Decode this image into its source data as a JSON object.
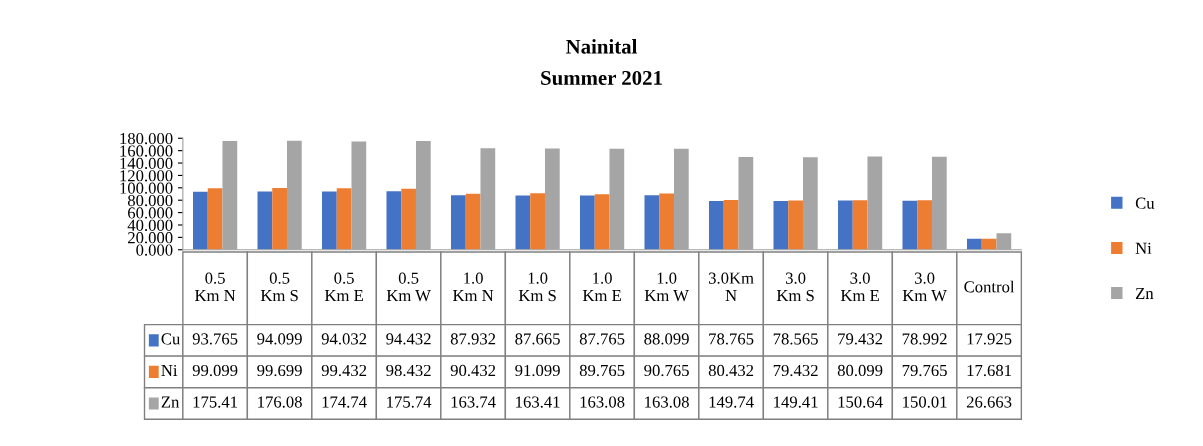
{
  "chart_data": {
    "type": "bar",
    "title": "Nainital",
    "subtitle": "Summer 2021",
    "categories": [
      "0.5 Km N",
      "0.5 Km S",
      "0.5 Km E",
      "0.5 Km W",
      "1.0 Km N",
      "1.0 Km S",
      "1.0 Km E",
      "1.0 Km W",
      "3.0Km N",
      "3.0 Km S",
      "3.0 Km E",
      "3.0 Km W",
      "Control"
    ],
    "series": [
      {
        "name": "Cu",
        "color": "#4472c4",
        "values": [
          93.765,
          94.099,
          94.032,
          94.432,
          87.932,
          87.665,
          87.765,
          88.099,
          78.765,
          78.565,
          79.432,
          78.992,
          17.925
        ],
        "value_labels": [
          "93.765",
          "94.099",
          "94.032",
          "94.432",
          "87.932",
          "87.665",
          "87.765",
          "88.099",
          "78.765",
          "78.565",
          "79.432",
          "78.992",
          "17.925"
        ]
      },
      {
        "name": "Ni",
        "color": "#ed7d31",
        "values": [
          99.099,
          99.699,
          99.432,
          98.432,
          90.432,
          91.099,
          89.765,
          90.765,
          80.432,
          79.432,
          80.099,
          79.765,
          17.681
        ],
        "value_labels": [
          "99.099",
          "99.699",
          "99.432",
          "98.432",
          "90.432",
          "91.099",
          "89.765",
          "90.765",
          "80.432",
          "79.432",
          "80.099",
          "79.765",
          "17.681"
        ]
      },
      {
        "name": "Zn",
        "color": "#a5a5a5",
        "values": [
          175.41,
          176.08,
          174.74,
          175.74,
          163.74,
          163.41,
          163.08,
          163.08,
          149.74,
          149.41,
          150.64,
          150.01,
          26.663
        ],
        "value_labels": [
          "175.41",
          "176.08",
          "174.74",
          "175.74",
          "163.74",
          "163.41",
          "163.08",
          "163.08",
          "149.74",
          "149.41",
          "150.64",
          "150.01",
          "26.663"
        ]
      }
    ],
    "ylim": [
      0,
      180
    ],
    "yticks": [
      {
        "value": 0,
        "label": "0.000"
      },
      {
        "value": 20,
        "label": "20.000"
      },
      {
        "value": 40,
        "label": "40.000"
      },
      {
        "value": 60,
        "label": "60.000"
      },
      {
        "value": 80,
        "label": "80.000"
      },
      {
        "value": 100,
        "label": "100.000"
      },
      {
        "value": 120,
        "label": "120.000"
      },
      {
        "value": 140,
        "label": "140.000"
      },
      {
        "value": 160,
        "label": "160.000"
      },
      {
        "value": 180,
        "label": "180.000"
      }
    ],
    "grid": false,
    "legend": "right"
  }
}
